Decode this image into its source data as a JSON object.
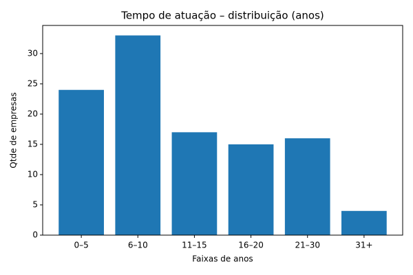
{
  "chart_data": {
    "type": "bar",
    "title": "Tempo de atuação – distribuição (anos)",
    "x_label": "Faixas de anos",
    "y_label": "Qtde de empresas",
    "categories": [
      "0–5",
      "6–10",
      "11–15",
      "16–20",
      "21–30",
      "31+"
    ],
    "values": [
      24,
      33,
      17,
      15,
      16,
      4
    ],
    "color": "#1f77b4",
    "ylim": [
      0,
      34.65
    ],
    "yticks": [
      0,
      5,
      10,
      15,
      20,
      25,
      30
    ],
    "grid": false
  }
}
